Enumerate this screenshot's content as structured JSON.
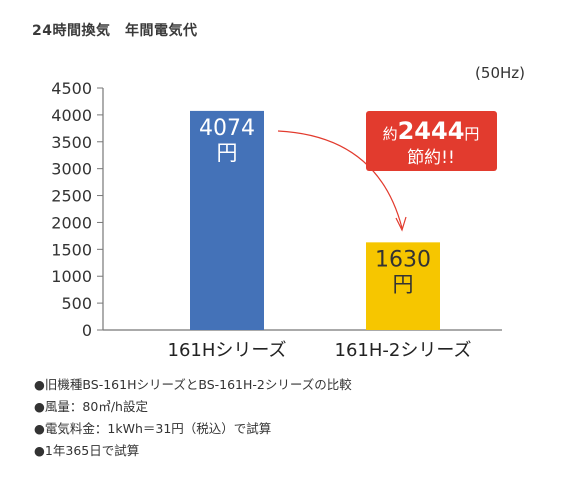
{
  "header": {
    "title": "24時間換気　年間電気代"
  },
  "chart_data": {
    "type": "bar",
    "unit_label": "(50Hz)",
    "categories": [
      "161Hシリーズ",
      "161H-2シリーズ"
    ],
    "values": [
      4074,
      1630
    ],
    "value_labels": [
      {
        "number": "4074",
        "unit": "円"
      },
      {
        "number": "1630",
        "unit": "円"
      }
    ],
    "bar_colors": [
      "#4472b8",
      "#f6c600"
    ],
    "ylim": [
      0,
      4500
    ],
    "yticks": [
      0,
      500,
      1000,
      1500,
      2000,
      2500,
      3000,
      3500,
      4000,
      4500
    ],
    "grid": false,
    "callout": {
      "prefix": "約",
      "amount": "2444",
      "suffix": "円",
      "line2": "節約!!",
      "color": "#e23b2e"
    },
    "arrow_color": "#e23b2e"
  },
  "notes": [
    "●旧機種BS-161HシリーズとBS-161H-2シリーズの比較",
    "●風量：80㎥/h設定",
    "●電気料金：1kWh＝31円（税込）で試算",
    "●1年365日で試算"
  ]
}
